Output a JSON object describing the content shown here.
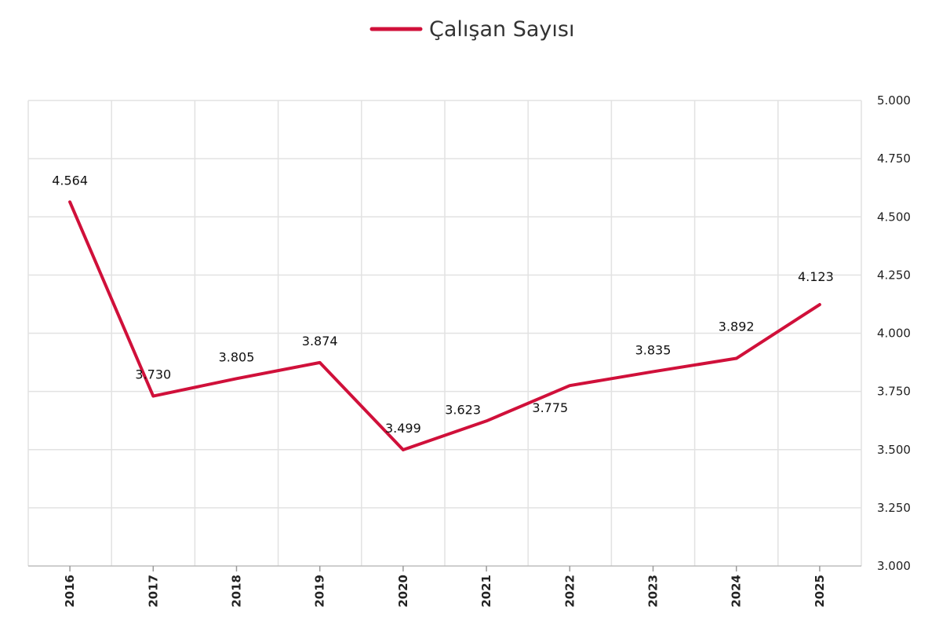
{
  "chart_data": {
    "type": "line",
    "legend_position": "top-center",
    "grid": true,
    "x": [
      "2016",
      "2017",
      "2018",
      "2019",
      "2020",
      "2021",
      "2022",
      "2023",
      "2024",
      "2025"
    ],
    "series": [
      {
        "name": "Çalışan Sayısı",
        "color": "#d0103a",
        "values": [
          4564,
          3730,
          3805,
          3874,
          3499,
          3623,
          3775,
          3835,
          3892,
          4123
        ],
        "labels": [
          "4.564",
          "3.730",
          "3.805",
          "3.874",
          "3.499",
          "3.623",
          "3.775",
          "3.835",
          "3.892",
          "4.123"
        ]
      }
    ],
    "ylim": [
      3000,
      5000
    ],
    "yticks": [
      3000,
      3250,
      3500,
      3750,
      4000,
      4250,
      4500,
      4750,
      5000
    ],
    "ytick_labels": [
      "3.000",
      "3.250",
      "3.500",
      "3.750",
      "4.000",
      "4.250",
      "4.500",
      "4.750",
      "5.000"
    ],
    "y_axis_side": "right"
  }
}
